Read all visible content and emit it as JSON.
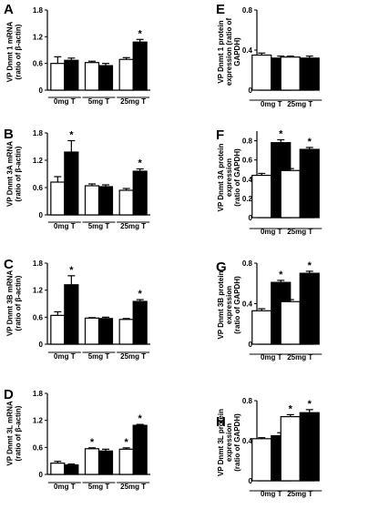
{
  "chart_data": [
    {
      "panel_letter": "A",
      "type": "bar",
      "ylabel": "VP Dnmt 1 mRNA (ratio of β-actin)",
      "ylabel_lines": [
        "VP Dnmt 1 mRNA",
        "(ratio of β-actin)"
      ],
      "ylim": [
        0,
        1.8
      ],
      "yticks": [
        "0",
        "0.6",
        "1.2",
        "1.8"
      ],
      "groups": [
        "0mg T",
        "5mg T",
        "25mg T"
      ],
      "series": [
        {
          "fill": "#ffffff",
          "values": [
            0.6,
            0.62,
            0.69
          ],
          "errors": [
            0.15,
            0.03,
            0.04
          ]
        },
        {
          "fill": "#000000",
          "values": [
            0.67,
            0.55,
            1.08
          ],
          "errors": [
            0.05,
            0.05,
            0.06
          ]
        }
      ],
      "significance_marks": [
        "*"
      ],
      "significance": [
        {
          "group": 2,
          "series": 1,
          "mark": "*"
        }
      ]
    },
    {
      "panel_letter": "B",
      "type": "bar",
      "ylabel": "VP Dnmt 3A mRNA (ratio of β-actin)",
      "ylabel_lines": [
        "VP Dnmt 3A mRNA",
        "(ratio of β-actin)"
      ],
      "ylim": [
        0,
        1.8
      ],
      "yticks": [
        "0",
        "0.6",
        "1.2",
        "1.8"
      ],
      "groups": [
        "0mg T",
        "5mg T",
        "25mg T"
      ],
      "series": [
        {
          "fill": "#ffffff",
          "values": [
            0.72,
            0.64,
            0.54
          ],
          "errors": [
            0.12,
            0.04,
            0.04
          ]
        },
        {
          "fill": "#000000",
          "values": [
            1.38,
            0.62,
            0.96
          ],
          "errors": [
            0.25,
            0.04,
            0.05
          ]
        }
      ],
      "significance_marks": [
        "*",
        "*"
      ],
      "significance": [
        {
          "group": 0,
          "series": 1,
          "mark": "*"
        },
        {
          "group": 2,
          "series": 1,
          "mark": "*"
        }
      ]
    },
    {
      "panel_letter": "C",
      "type": "bar",
      "ylabel": "VP Dnmt 3B mRNA (ratio of β-actin)",
      "ylabel_lines": [
        "VP Dnmt 3B mRNA",
        "(ratio of β-actin)"
      ],
      "ylim": [
        0,
        1.8
      ],
      "yticks": [
        "0",
        "0.6",
        "1.2",
        "1.8"
      ],
      "groups": [
        "0mg T",
        "5mg T",
        "25mg T"
      ],
      "series": [
        {
          "fill": "#ffffff",
          "values": [
            0.64,
            0.58,
            0.55
          ],
          "errors": [
            0.08,
            0.01,
            0.02
          ]
        },
        {
          "fill": "#000000",
          "values": [
            1.32,
            0.57,
            0.95
          ],
          "errors": [
            0.2,
            0.03,
            0.04
          ]
        }
      ],
      "significance_marks": [
        "*",
        "*"
      ],
      "significance": [
        {
          "group": 0,
          "series": 1,
          "mark": "*"
        },
        {
          "group": 2,
          "series": 1,
          "mark": "*"
        }
      ]
    },
    {
      "panel_letter": "D",
      "type": "bar",
      "ylabel": "VP Dnmt 3L mRNA (ratio of β-actin)",
      "ylabel_lines": [
        "VP Dnmt 3L mRNA",
        "(ratio of β-actin)"
      ],
      "ylim": [
        0,
        1.8
      ],
      "yticks": [
        "0",
        "0.6",
        "1.2",
        "1.8"
      ],
      "groups": [
        "0mg T",
        "5mg T",
        "25mg T"
      ],
      "series": [
        {
          "fill": "#ffffff",
          "values": [
            0.25,
            0.57,
            0.56
          ],
          "errors": [
            0.04,
            0.02,
            0.03
          ]
        },
        {
          "fill": "#000000",
          "values": [
            0.21,
            0.52,
            1.09
          ],
          "errors": [
            0.02,
            0.04,
            0.02
          ]
        }
      ],
      "significance_marks": [
        "*",
        "*",
        "*"
      ],
      "significance": [
        {
          "group": 1,
          "series": 0,
          "mark": "*"
        },
        {
          "group": 2,
          "series": 0,
          "mark": "*"
        },
        {
          "group": 2,
          "series": 1,
          "mark": "*"
        }
      ]
    },
    {
      "panel_letter": "E",
      "type": "bar",
      "ylabel": "VP Dnmt 1 protein expression (ratio of GAPDH)",
      "ylabel_lines": [
        "VP Dnmt 1 protein",
        "expression (ratio of",
        "GAPDH)"
      ],
      "ylim": [
        0,
        0.8
      ],
      "yticks": [
        "0",
        "0.4",
        "0.8"
      ],
      "groups": [
        "0mg T",
        "25mg T"
      ],
      "series": [
        {
          "fill": "#ffffff",
          "values": [
            0.35,
            0.33
          ],
          "errors": [
            0.02,
            0.01
          ]
        },
        {
          "fill": "#000000",
          "values": [
            0.32,
            0.32
          ],
          "errors": [
            0.02,
            0.02
          ]
        }
      ],
      "significance_marks": [],
      "significance": []
    },
    {
      "panel_letter": "F",
      "type": "bar",
      "ylabel": "VP Dnmt 3A protein expression (ratio of GAPDH)",
      "ylabel_lines": [
        "VP Dnmt 3A protein",
        "expression",
        "(ratio of GAPDH)"
      ],
      "ylim": [
        0,
        0.9
      ],
      "yticks": [
        "0",
        "0.2",
        "0.4",
        "0.6",
        "0.8"
      ],
      "groups": [
        "0mg T",
        "25mg T"
      ],
      "series": [
        {
          "fill": "#ffffff",
          "values": [
            0.44,
            0.49
          ],
          "errors": [
            0.02,
            0.02
          ]
        },
        {
          "fill": "#000000",
          "values": [
            0.78,
            0.71
          ],
          "errors": [
            0.03,
            0.02
          ]
        }
      ],
      "significance_marks": [
        "*",
        "*"
      ],
      "significance": [
        {
          "group": 0,
          "series": 1,
          "mark": "*"
        },
        {
          "group": 1,
          "series": 1,
          "mark": "*"
        }
      ]
    },
    {
      "panel_letter": "G",
      "type": "bar",
      "ylabel": "VP Dnmt 3B protein expression (ratio of GAPDH)",
      "ylabel_lines": [
        "VP Dnmt 3B protein",
        "expression",
        "(ratio of GAPDH)"
      ],
      "ylim": [
        0,
        0.8
      ],
      "yticks": [
        "0",
        "0.4",
        "0.8"
      ],
      "groups": [
        "0mg T",
        "25mg T"
      ],
      "series": [
        {
          "fill": "#ffffff",
          "values": [
            0.33,
            0.42
          ],
          "errors": [
            0.02,
            0.02
          ]
        },
        {
          "fill": "#000000",
          "values": [
            0.61,
            0.7
          ],
          "errors": [
            0.02,
            0.02
          ]
        }
      ],
      "significance_marks": [
        "*",
        "*"
      ],
      "significance": [
        {
          "group": 0,
          "series": 1,
          "mark": "*"
        },
        {
          "group": 1,
          "series": 1,
          "mark": "*"
        }
      ]
    },
    {
      "panel_letter": "H",
      "type": "bar",
      "ylabel": "VP Dnmt 3L protein expression (ratio of GAPDH)",
      "ylabel_lines": [
        "VP Dnmt 3L protein",
        "expression",
        "(ratio of GAPDH)"
      ],
      "ylim": [
        0,
        0.8
      ],
      "yticks": [
        "0",
        "0.4",
        "0.8"
      ],
      "groups": [
        "0mg T",
        "25mg T"
      ],
      "series": [
        {
          "fill": "#ffffff",
          "values": [
            0.42,
            0.64
          ],
          "errors": [
            0.01,
            0.02
          ]
        },
        {
          "fill": "#000000",
          "values": [
            0.45,
            0.68
          ],
          "errors": [
            0.03,
            0.03
          ]
        }
      ],
      "significance_marks": [
        "*",
        "*"
      ],
      "significance": [
        {
          "group": 1,
          "series": 0,
          "mark": "*"
        },
        {
          "group": 1,
          "series": 1,
          "mark": "*"
        }
      ]
    }
  ]
}
